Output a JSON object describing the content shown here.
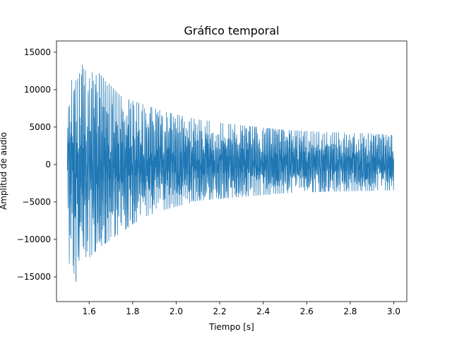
{
  "chart_data": {
    "type": "line",
    "title": "Gráfico temporal",
    "xlabel": "Tiempo [s]",
    "ylabel": "Amplitud de audio",
    "xlim": [
      1.45,
      3.06
    ],
    "ylim": [
      -18300,
      16500
    ],
    "x_ticks": [
      1.6,
      1.8,
      2.0,
      2.2,
      2.4,
      2.6,
      2.8,
      3.0
    ],
    "x_tick_labels": [
      "1.6",
      "1.8",
      "2.0",
      "2.2",
      "2.4",
      "2.6",
      "2.8",
      "3.0"
    ],
    "y_ticks": [
      -15000,
      -10000,
      -5000,
      0,
      5000,
      10000,
      15000
    ],
    "y_tick_labels": [
      "−15000",
      "−10000",
      "−5000",
      "0",
      "5000",
      "10000",
      "15000"
    ],
    "grid": false,
    "legend": "none",
    "line_color": "#1f77b4",
    "series": [
      {
        "x_start": 1.5,
        "x_end": 3.0,
        "envelope": [
          {
            "t": 1.5,
            "max": 3500,
            "min": -2200
          },
          {
            "t": 1.51,
            "max": 11500,
            "min": -15800
          },
          {
            "t": 1.53,
            "max": 11000,
            "min": -14500
          },
          {
            "t": 1.55,
            "max": 11500,
            "min": -16800
          },
          {
            "t": 1.58,
            "max": 15100,
            "min": -13000
          },
          {
            "t": 1.65,
            "max": 12000,
            "min": -11000
          },
          {
            "t": 1.75,
            "max": 9000,
            "min": -9000
          },
          {
            "t": 1.85,
            "max": 8000,
            "min": -7000
          },
          {
            "t": 1.95,
            "max": 7000,
            "min": -6000
          },
          {
            "t": 2.1,
            "max": 6000,
            "min": -4800
          },
          {
            "t": 2.3,
            "max": 5200,
            "min": -4300
          },
          {
            "t": 2.5,
            "max": 4600,
            "min": -3800
          },
          {
            "t": 2.7,
            "max": 4300,
            "min": -3600
          },
          {
            "t": 2.9,
            "max": 4100,
            "min": -3500
          },
          {
            "t": 3.0,
            "max": 3900,
            "min": -3400
          }
        ]
      }
    ]
  }
}
